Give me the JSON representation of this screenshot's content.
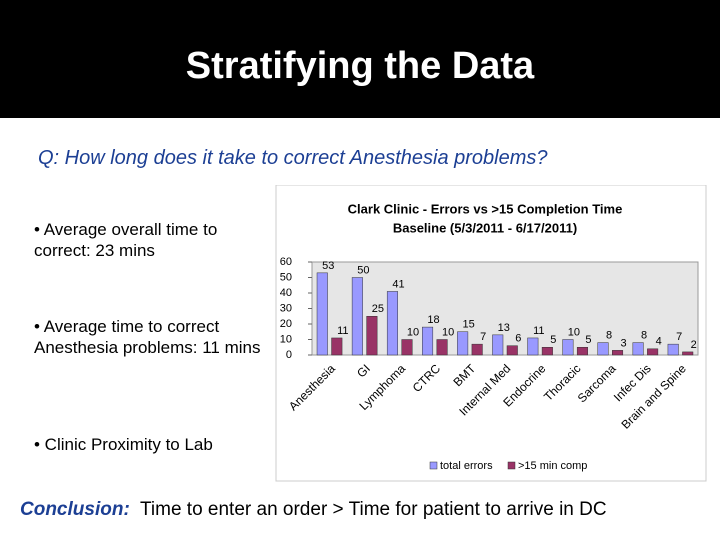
{
  "title": "Stratifying the Data",
  "question": "Q: How long does it take to correct Anesthesia problems?",
  "bullets": [
    "• Average overall time to correct: 23 mins",
    "• Average time to correct Anesthesia problems: 11 mins",
    "• Clinic Proximity to Lab"
  ],
  "conclusion": {
    "label": "Conclusion:",
    "text": "Time to enter an order > Time for patient to arrive in DC"
  },
  "chart_data": {
    "type": "bar",
    "title": "Clark Clinic - Errors vs >15 Completion Time",
    "subtitle": "Baseline (5/3/2011 - 6/17/2011)",
    "categories": [
      "Anesthesia",
      "GI",
      "Lymphoma",
      "CTRC",
      "BMT",
      "Internal Med",
      "Endocrine",
      "Thoracic",
      "Sarcoma",
      "Infec Dis",
      "Brain and Spine"
    ],
    "series": [
      {
        "name": "total errors",
        "color": "#9999ff",
        "values": [
          53,
          50,
          41,
          18,
          15,
          13,
          11,
          10,
          8,
          8,
          7
        ]
      },
      {
        "name": ">15 min comp",
        "color": "#993366",
        "values": [
          11,
          25,
          10,
          10,
          7,
          6,
          5,
          5,
          3,
          4,
          2
        ]
      }
    ],
    "ylim": [
      0,
      60
    ],
    "yticks": [
      0,
      10,
      20,
      30,
      40,
      50,
      60
    ],
    "grid": false,
    "legend": "bottom"
  }
}
